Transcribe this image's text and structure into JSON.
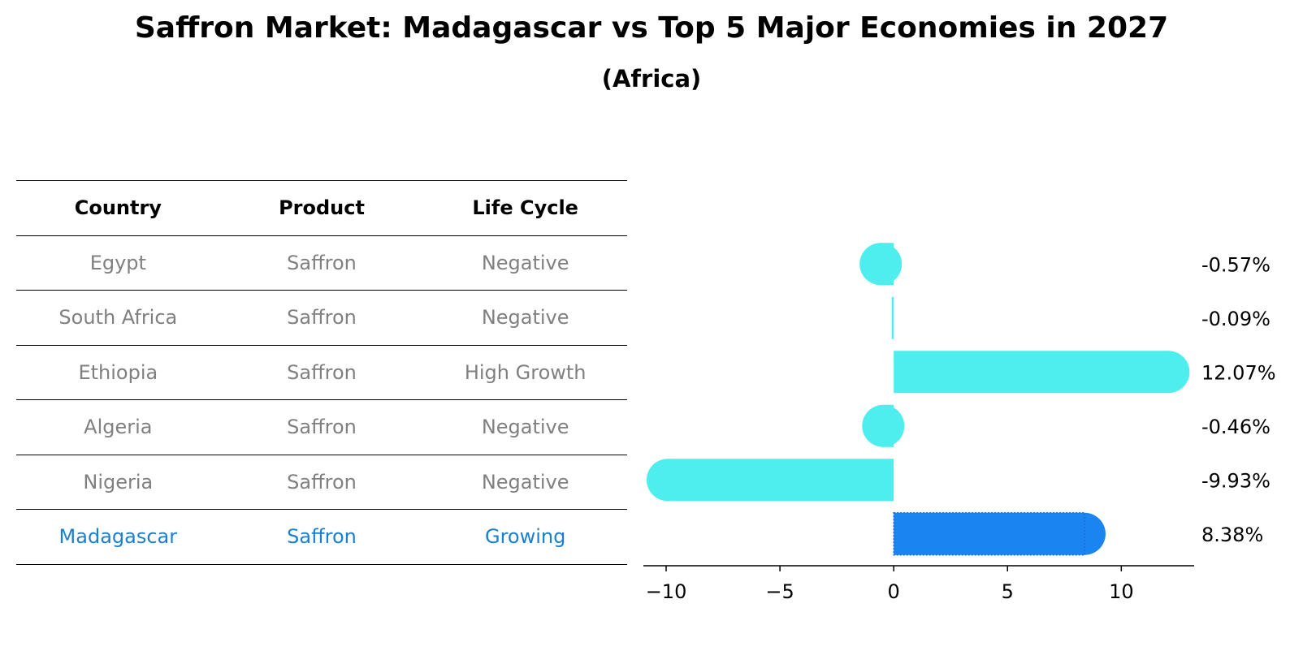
{
  "title": "Saffron Market: Madagascar vs Top 5 Major Economies in 2027",
  "subtitle": "(Africa)",
  "table": {
    "headers": [
      "Country",
      "Product",
      "Life Cycle"
    ],
    "rows": [
      [
        "Egypt",
        "Saffron",
        "Negative"
      ],
      [
        "South Africa",
        "Saffron",
        "Negative"
      ],
      [
        "Ethiopia",
        "Saffron",
        "High Growth"
      ],
      [
        "Algeria",
        "Saffron",
        "Negative"
      ],
      [
        "Nigeria",
        "Saffron",
        "Negative"
      ],
      [
        "Madagascar",
        "Saffron",
        "Growing"
      ]
    ]
  },
  "colors": {
    "bar": "#4EEEEE",
    "highlight_bar": "#1A85F0",
    "highlight_text": "#1A7FD0",
    "muted_text": "#808080"
  },
  "chart_data": {
    "type": "bar",
    "orientation": "horizontal",
    "categories": [
      "Egypt",
      "South Africa",
      "Ethiopia",
      "Algeria",
      "Nigeria",
      "Madagascar"
    ],
    "values": [
      -0.57,
      -0.09,
      12.07,
      -0.46,
      -9.93,
      8.38
    ],
    "value_labels": [
      "-0.57%",
      "-0.09%",
      "12.07%",
      "-0.46%",
      "-9.93%",
      "8.38%"
    ],
    "highlight": "Madagascar",
    "xlim": [
      -11,
      13.2
    ],
    "xticks": [
      -10,
      -5,
      0,
      5,
      10
    ],
    "xtick_labels": [
      "−10",
      "−5",
      "0",
      "5",
      "10"
    ],
    "xlabel": "",
    "ylabel": "",
    "grid": false
  }
}
